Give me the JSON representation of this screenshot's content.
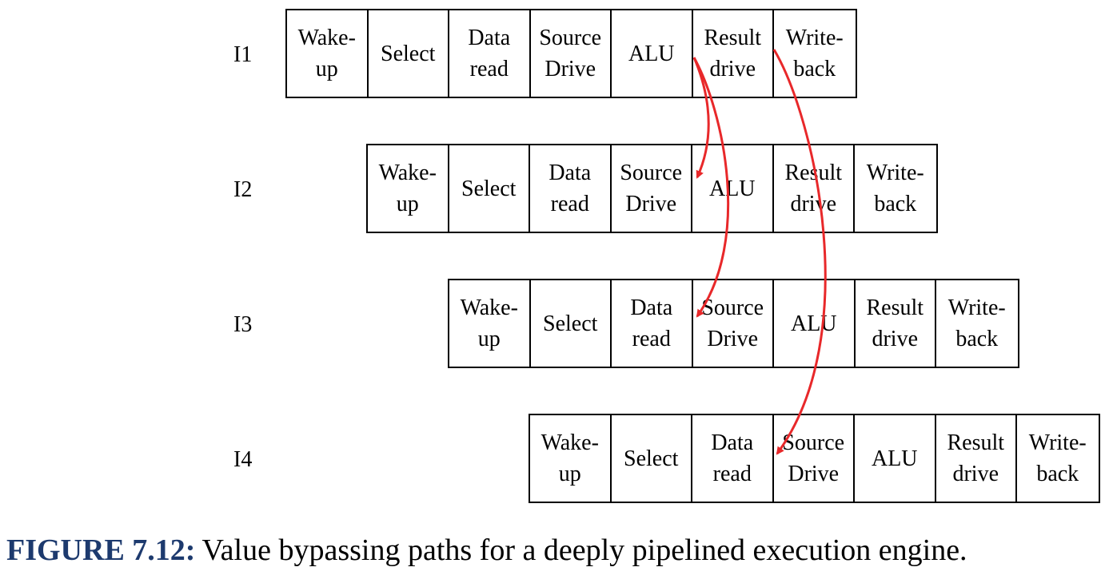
{
  "colors": {
    "arrow": "#e8282a",
    "caption_label": "#1d3a6e",
    "text": "#000000"
  },
  "rows": [
    {
      "label": "I1",
      "stages": [
        "Wake-\nup",
        "Select",
        "Data\nread",
        "Source\nDrive",
        "ALU",
        "Result\ndrive",
        "Write-\nback"
      ]
    },
    {
      "label": "I2",
      "stages": [
        "Wake-\nup",
        "Select",
        "Data\nread",
        "Source\nDrive",
        "ALU",
        "Result\ndrive",
        "Write-\nback"
      ]
    },
    {
      "label": "I3",
      "stages": [
        "Wake-\nup",
        "Select",
        "Data\nread",
        "Source\nDrive",
        "ALU",
        "Result\ndrive",
        "Write-\nback"
      ]
    },
    {
      "label": "I4",
      "stages": [
        "Wake-\nup",
        "Select",
        "Data\nread",
        "Source\nDrive",
        "ALU",
        "Result\ndrive",
        "Write-\nback"
      ]
    }
  ],
  "bypass_paths": [
    {
      "from": "I1 Result drive",
      "to": "I2 ALU"
    },
    {
      "from": "I1 Result drive",
      "to": "I3 Source Drive"
    },
    {
      "from": "I1 Write-back",
      "to": "I4 Source Drive"
    }
  ],
  "caption": {
    "label": "FIGURE 7.12:",
    "text": "Value bypassing paths for a deeply pipelined execution engine."
  }
}
